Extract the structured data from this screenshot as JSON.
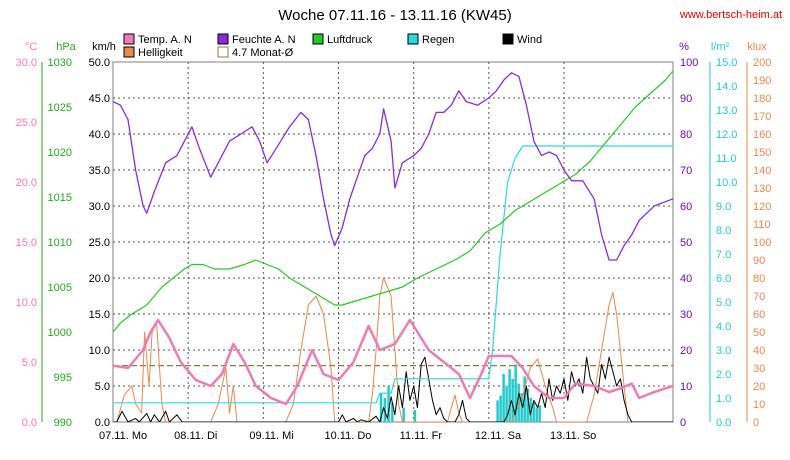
{
  "title": "Woche 07.11.16 - 13.11.16 (KW45)",
  "site": "www.bertsch-heim.at",
  "legend": [
    {
      "name": "Temp. A. N",
      "color": "#f07ab4"
    },
    {
      "name": "Feuchte A. N",
      "color": "#8a2be2"
    },
    {
      "name": "Luftdruck",
      "color": "#22cc22"
    },
    {
      "name": "Regen",
      "color": "#22dddd"
    },
    {
      "name": "Wind",
      "color": "#000000"
    },
    {
      "name": "Helligkeit",
      "color": "#e8894a"
    },
    {
      "name": "4.7 Monat-Ø",
      "color": "#8b7d3a"
    }
  ],
  "chart_data": {
    "type": "line",
    "x_ticks": [
      "07.11. Mo",
      "08.11. Di",
      "09.11. Mi",
      "10.11. Do",
      "11.11. Fr",
      "12.11. Sa",
      "13.11. So"
    ],
    "axes": {
      "temp": {
        "unit": "°C",
        "min": 0,
        "max": 30,
        "ticks": [
          "0.0",
          "5.0",
          "10.0",
          "15.0",
          "20.0",
          "25.0",
          "30.0"
        ],
        "color": "#f07ab4"
      },
      "pressure": {
        "unit": "hPa",
        "min": 990,
        "max": 1030,
        "ticks": [
          "990",
          "995",
          "1000",
          "1005",
          "1010",
          "1015",
          "1020",
          "1025",
          "1030"
        ],
        "color": "#22aa22"
      },
      "wind": {
        "unit": "km/h",
        "min": 0,
        "max": 50,
        "ticks": [
          "0.0",
          "5.0",
          "10.0",
          "15.0",
          "20.0",
          "25.0",
          "30.0",
          "35.0",
          "40.0",
          "45.0",
          "50.0"
        ],
        "color": "#000000"
      },
      "humidity": {
        "unit": "%",
        "min": 0,
        "max": 100,
        "ticks": [
          "0",
          "10",
          "20",
          "30",
          "40",
          "50",
          "60",
          "70",
          "80",
          "90",
          "100"
        ],
        "color": "#6a0dad"
      },
      "rain": {
        "unit": "l/m²",
        "min": 0,
        "max": 15,
        "ticks": [
          "0.0",
          "1.0",
          "2.0",
          "3.0",
          "4.0",
          "5.0",
          "6.0",
          "7.0",
          "8.0",
          "9.0",
          "10.0",
          "11.0",
          "12.0",
          "13.0",
          "14.0",
          "15.0"
        ],
        "color": "#22cccc"
      },
      "lux": {
        "unit": "klux",
        "min": 0,
        "max": 200,
        "ticks": [
          "0",
          "10",
          "20",
          "30",
          "40",
          "50",
          "60",
          "70",
          "80",
          "90",
          "100",
          "110",
          "120",
          "130",
          "140",
          "150",
          "160",
          "170",
          "180",
          "190",
          "200"
        ],
        "color": "#e8894a"
      }
    },
    "month_avg_temp": 4.7,
    "series": {
      "temperature": [
        [
          0,
          4.7
        ],
        [
          0.2,
          4.5
        ],
        [
          0.4,
          6
        ],
        [
          0.5,
          7.5
        ],
        [
          0.6,
          8.5
        ],
        [
          0.75,
          7
        ],
        [
          0.9,
          5
        ],
        [
          1.1,
          3.5
        ],
        [
          1.3,
          3
        ],
        [
          1.45,
          4
        ],
        [
          1.6,
          6.5
        ],
        [
          1.75,
          5
        ],
        [
          1.9,
          3
        ],
        [
          2.1,
          2
        ],
        [
          2.3,
          1.5
        ],
        [
          2.45,
          3
        ],
        [
          2.65,
          6
        ],
        [
          2.8,
          4
        ],
        [
          3.0,
          3.5
        ],
        [
          3.2,
          5
        ],
        [
          3.4,
          8
        ],
        [
          3.55,
          6
        ],
        [
          3.75,
          6.5
        ],
        [
          3.95,
          8.5
        ],
        [
          4.2,
          6
        ],
        [
          4.4,
          5
        ],
        [
          4.6,
          4
        ],
        [
          4.75,
          2
        ],
        [
          4.9,
          4
        ],
        [
          5.0,
          5.5
        ],
        [
          5.3,
          5.5
        ],
        [
          5.45,
          4.5
        ],
        [
          5.6,
          3
        ],
        [
          5.8,
          2
        ],
        [
          6.0,
          2
        ],
        [
          6.15,
          3.2
        ],
        [
          6.4,
          3
        ],
        [
          6.6,
          2.5
        ],
        [
          6.75,
          2.8
        ],
        [
          6.9,
          3.2
        ],
        [
          7.0,
          2
        ],
        [
          7.2,
          2.5
        ],
        [
          7.45,
          3
        ]
      ],
      "humidity": [
        [
          0,
          89
        ],
        [
          0.1,
          88
        ],
        [
          0.2,
          84
        ],
        [
          0.3,
          70
        ],
        [
          0.4,
          60
        ],
        [
          0.45,
          58
        ],
        [
          0.55,
          64
        ],
        [
          0.7,
          72
        ],
        [
          0.85,
          74
        ],
        [
          0.95,
          78
        ],
        [
          1.05,
          82
        ],
        [
          1.15,
          76
        ],
        [
          1.3,
          68
        ],
        [
          1.4,
          72
        ],
        [
          1.55,
          78
        ],
        [
          1.7,
          80
        ],
        [
          1.85,
          82
        ],
        [
          1.95,
          78
        ],
        [
          2.05,
          72
        ],
        [
          2.2,
          77
        ],
        [
          2.35,
          82
        ],
        [
          2.5,
          86
        ],
        [
          2.6,
          84
        ],
        [
          2.7,
          74
        ],
        [
          2.8,
          62
        ],
        [
          2.9,
          52
        ],
        [
          2.95,
          49
        ],
        [
          3.05,
          54
        ],
        [
          3.15,
          62
        ],
        [
          3.25,
          68
        ],
        [
          3.35,
          74
        ],
        [
          3.45,
          76
        ],
        [
          3.55,
          80
        ],
        [
          3.6,
          87
        ],
        [
          3.7,
          78
        ],
        [
          3.75,
          65
        ],
        [
          3.85,
          72
        ],
        [
          4.0,
          74
        ],
        [
          4.1,
          76
        ],
        [
          4.2,
          80
        ],
        [
          4.3,
          86
        ],
        [
          4.4,
          86
        ],
        [
          4.5,
          88
        ],
        [
          4.6,
          92
        ],
        [
          4.7,
          89
        ],
        [
          4.85,
          88
        ],
        [
          5.0,
          90
        ],
        [
          5.1,
          92
        ],
        [
          5.2,
          95
        ],
        [
          5.3,
          97
        ],
        [
          5.4,
          96
        ],
        [
          5.5,
          88
        ],
        [
          5.6,
          78
        ],
        [
          5.7,
          74
        ],
        [
          5.8,
          75
        ],
        [
          5.9,
          74
        ],
        [
          6.0,
          70
        ],
        [
          6.1,
          67
        ],
        [
          6.25,
          67
        ],
        [
          6.4,
          62
        ],
        [
          6.5,
          52
        ],
        [
          6.6,
          45
        ],
        [
          6.7,
          45
        ],
        [
          6.8,
          49
        ],
        [
          6.9,
          52
        ],
        [
          7.0,
          56
        ],
        [
          7.1,
          58
        ],
        [
          7.2,
          60
        ],
        [
          7.45,
          62
        ]
      ],
      "pressure": [
        [
          0,
          1000
        ],
        [
          0.1,
          1001
        ],
        [
          0.25,
          1002
        ],
        [
          0.45,
          1003
        ],
        [
          0.65,
          1005
        ],
        [
          0.8,
          1006
        ],
        [
          0.95,
          1007
        ],
        [
          1.05,
          1007.5
        ],
        [
          1.2,
          1007.5
        ],
        [
          1.35,
          1007
        ],
        [
          1.55,
          1007
        ],
        [
          1.75,
          1007.5
        ],
        [
          1.9,
          1008
        ],
        [
          2.05,
          1007.5
        ],
        [
          2.2,
          1007
        ],
        [
          2.35,
          1006
        ],
        [
          2.55,
          1005
        ],
        [
          2.75,
          1004
        ],
        [
          2.95,
          1003
        ],
        [
          3.05,
          1003
        ],
        [
          3.25,
          1003.5
        ],
        [
          3.45,
          1004
        ],
        [
          3.65,
          1004.5
        ],
        [
          3.85,
          1005
        ],
        [
          4.05,
          1006
        ],
        [
          4.3,
          1007
        ],
        [
          4.55,
          1008
        ],
        [
          4.75,
          1009
        ],
        [
          4.95,
          1011
        ],
        [
          5.15,
          1012
        ],
        [
          5.35,
          1013.5
        ],
        [
          5.55,
          1014.5
        ],
        [
          5.75,
          1015.5
        ],
        [
          5.95,
          1016.5
        ],
        [
          6.15,
          1017.5
        ],
        [
          6.35,
          1019
        ],
        [
          6.55,
          1021
        ],
        [
          6.75,
          1023
        ],
        [
          6.95,
          1025
        ],
        [
          7.15,
          1026.5
        ],
        [
          7.35,
          1028
        ],
        [
          7.45,
          1029
        ]
      ],
      "rain": [
        [
          0,
          0.8
        ],
        [
          3.5,
          0.8
        ],
        [
          3.55,
          1.2
        ],
        [
          3.7,
          1.2
        ],
        [
          3.75,
          1.8
        ],
        [
          4.55,
          1.8
        ],
        [
          5.0,
          1.8
        ],
        [
          5.05,
          3
        ],
        [
          5.15,
          7
        ],
        [
          5.25,
          10
        ],
        [
          5.35,
          11
        ],
        [
          5.45,
          11.5
        ],
        [
          7.45,
          11.5
        ]
      ],
      "wind": [
        [
          0,
          0
        ],
        [
          0.05,
          0
        ],
        [
          0.12,
          1.5
        ],
        [
          0.2,
          0
        ],
        [
          0.3,
          0.5
        ],
        [
          0.35,
          0
        ],
        [
          0.45,
          1.2
        ],
        [
          0.5,
          0
        ],
        [
          0.55,
          1
        ],
        [
          0.62,
          0
        ],
        [
          0.7,
          1.5
        ],
        [
          0.75,
          0
        ],
        [
          0.85,
          1
        ],
        [
          0.92,
          0
        ],
        [
          1.0,
          0
        ],
        [
          3.0,
          0
        ],
        [
          3.05,
          1
        ],
        [
          3.1,
          0
        ],
        [
          3.2,
          0.5
        ],
        [
          3.25,
          0
        ],
        [
          3.3,
          0.3
        ],
        [
          3.4,
          0
        ],
        [
          3.5,
          0.8
        ],
        [
          3.55,
          0
        ],
        [
          3.6,
          2
        ],
        [
          3.65,
          0.5
        ],
        [
          3.7,
          3.5
        ],
        [
          3.75,
          1
        ],
        [
          3.8,
          5
        ],
        [
          3.85,
          2
        ],
        [
          3.9,
          7
        ],
        [
          3.95,
          3
        ],
        [
          4.0,
          5
        ],
        [
          4.05,
          2
        ],
        [
          4.1,
          8
        ],
        [
          4.15,
          9
        ],
        [
          4.2,
          6
        ],
        [
          4.25,
          3
        ],
        [
          4.3,
          1
        ],
        [
          4.35,
          2
        ],
        [
          4.4,
          0.5
        ],
        [
          4.45,
          0
        ],
        [
          4.5,
          0
        ],
        [
          4.55,
          0
        ],
        [
          4.6,
          1
        ],
        [
          4.65,
          3
        ],
        [
          4.7,
          0.5
        ],
        [
          4.75,
          0
        ],
        [
          4.8,
          0
        ],
        [
          5.0,
          0
        ],
        [
          5.2,
          0
        ],
        [
          5.25,
          1
        ],
        [
          5.3,
          3
        ],
        [
          5.35,
          1
        ],
        [
          5.4,
          4
        ],
        [
          5.45,
          2
        ],
        [
          5.5,
          5
        ],
        [
          5.55,
          1
        ],
        [
          5.6,
          3
        ],
        [
          5.65,
          2
        ],
        [
          5.7,
          4
        ],
        [
          5.75,
          2
        ],
        [
          5.8,
          6
        ],
        [
          5.85,
          3
        ],
        [
          5.9,
          5
        ],
        [
          5.95,
          4
        ],
        [
          6.0,
          6
        ],
        [
          6.05,
          3
        ],
        [
          6.1,
          7
        ],
        [
          6.15,
          5
        ],
        [
          6.2,
          6
        ],
        [
          6.25,
          4
        ],
        [
          6.3,
          9
        ],
        [
          6.35,
          6
        ],
        [
          6.4,
          5
        ],
        [
          6.45,
          4
        ],
        [
          6.5,
          8
        ],
        [
          6.55,
          6
        ],
        [
          6.6,
          9
        ],
        [
          6.65,
          7
        ],
        [
          6.7,
          5
        ],
        [
          6.75,
          6
        ],
        [
          6.8,
          3
        ],
        [
          6.85,
          1
        ],
        [
          6.9,
          0
        ],
        [
          7.0,
          0
        ],
        [
          7.45,
          0
        ]
      ],
      "lux": [
        [
          0,
          0
        ],
        [
          0.05,
          0
        ],
        [
          0.15,
          15
        ],
        [
          0.25,
          20
        ],
        [
          0.3,
          10
        ],
        [
          0.38,
          5
        ],
        [
          0.42,
          50
        ],
        [
          0.48,
          20
        ],
        [
          0.52,
          50
        ],
        [
          0.58,
          55
        ],
        [
          0.65,
          10
        ],
        [
          0.7,
          0
        ],
        [
          1.3,
          0
        ],
        [
          1.4,
          10
        ],
        [
          1.45,
          20
        ],
        [
          1.5,
          30
        ],
        [
          1.55,
          5
        ],
        [
          1.6,
          20
        ],
        [
          1.65,
          0
        ],
        [
          2.3,
          0
        ],
        [
          2.4,
          10
        ],
        [
          2.5,
          40
        ],
        [
          2.6,
          65
        ],
        [
          2.7,
          70
        ],
        [
          2.8,
          60
        ],
        [
          2.9,
          30
        ],
        [
          2.95,
          0
        ],
        [
          3.4,
          0
        ],
        [
          3.45,
          15
        ],
        [
          3.5,
          40
        ],
        [
          3.55,
          70
        ],
        [
          3.6,
          80
        ],
        [
          3.65,
          75
        ],
        [
          3.7,
          70
        ],
        [
          3.75,
          40
        ],
        [
          3.8,
          10
        ],
        [
          3.85,
          0
        ],
        [
          4.45,
          0
        ],
        [
          4.5,
          8
        ],
        [
          4.55,
          15
        ],
        [
          4.6,
          5
        ],
        [
          4.65,
          0
        ],
        [
          5.3,
          0
        ],
        [
          5.45,
          15
        ],
        [
          5.55,
          30
        ],
        [
          5.65,
          35
        ],
        [
          5.75,
          20
        ],
        [
          5.85,
          8
        ],
        [
          5.9,
          0
        ],
        [
          6.3,
          0
        ],
        [
          6.4,
          15
        ],
        [
          6.5,
          40
        ],
        [
          6.6,
          65
        ],
        [
          6.65,
          72
        ],
        [
          6.7,
          60
        ],
        [
          6.8,
          20
        ],
        [
          6.85,
          0
        ],
        [
          7.45,
          0
        ]
      ]
    },
    "rain_bars": [
      [
        3.55,
        1.2
      ],
      [
        3.6,
        1.0
      ],
      [
        3.65,
        1.5
      ],
      [
        3.7,
        0.8
      ],
      [
        3.85,
        0.6
      ],
      [
        4.0,
        0.5
      ],
      [
        5.1,
        0.9
      ],
      [
        5.14,
        1.1
      ],
      [
        5.18,
        2.0
      ],
      [
        5.22,
        1.5
      ],
      [
        5.26,
        2.2
      ],
      [
        5.3,
        1.8
      ],
      [
        5.34,
        2.4
      ],
      [
        5.38,
        1.6
      ],
      [
        5.42,
        1.2
      ],
      [
        5.46,
        1.9
      ],
      [
        5.5,
        1.4
      ],
      [
        5.54,
        1.0
      ],
      [
        5.58,
        0.8
      ],
      [
        5.62,
        0.6
      ],
      [
        5.66,
        0.7
      ]
    ]
  }
}
